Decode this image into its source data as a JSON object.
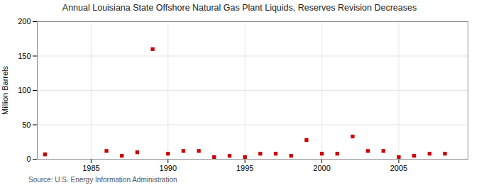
{
  "chart_data": {
    "type": "scatter",
    "title": "Annual Louisiana State Offshore Natural Gas Plant Liquids, Reserves Revision Decreases",
    "ylabel": "Million Barrels",
    "source": "Source: U.S. Energy Information Administration",
    "x": [
      1982,
      1986,
      1987,
      1988,
      1989,
      1990,
      1991,
      1992,
      1993,
      1994,
      1995,
      1996,
      1997,
      1998,
      1999,
      2000,
      2001,
      2002,
      2003,
      2004,
      2005,
      2006,
      2007,
      2008
    ],
    "values": [
      7,
      12,
      5,
      10,
      160,
      8,
      12,
      12,
      3,
      5,
      3,
      8,
      8,
      5,
      28,
      8,
      8,
      33,
      12,
      12,
      3,
      5,
      8,
      8
    ],
    "color": "#cc0000",
    "marker": "square",
    "xlim": [
      1981.5,
      2009.5
    ],
    "ylim": [
      0,
      200
    ],
    "xticks": [
      1985,
      1990,
      1995,
      2000,
      2005
    ],
    "yticks": [
      0,
      50,
      100,
      150,
      200
    ],
    "grid": true
  }
}
